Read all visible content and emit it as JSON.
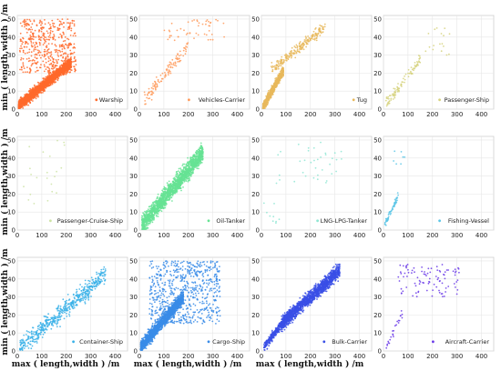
{
  "chart_data": {
    "type": "scatter",
    "layout": "3x4 grid of scatter panels",
    "grid": true,
    "legend_placement": "lower-right",
    "xlabel": "max ( length,width ) /m",
    "ylabel": "min ( length,width ) /m",
    "xlim": [
      0,
      450
    ],
    "ylim": [
      0,
      52
    ],
    "xticks": [
      0,
      100,
      200,
      300,
      400
    ],
    "yticks": [
      0,
      10,
      20,
      30,
      40,
      50
    ],
    "panels": [
      {
        "name": "Warship",
        "color": "#ff6a2b",
        "density": "very dense",
        "approx_points": 2400,
        "clusters": [
          {
            "x_range": [
              5,
              220
            ],
            "y_range": [
              2,
              30
            ],
            "weight": 0.8,
            "trend": "rising"
          },
          {
            "x_range": [
              10,
              240
            ],
            "y_range": [
              20,
              50
            ],
            "weight": 0.2,
            "trend": "none"
          }
        ]
      },
      {
        "name": "Vehicles-Carrier",
        "color": "#ff9a5a",
        "density": "medium",
        "approx_points": 160,
        "clusters": [
          {
            "x_range": [
              20,
              200
            ],
            "y_range": [
              5,
              40
            ],
            "weight": 0.7,
            "trend": "rising"
          },
          {
            "x_range": [
              100,
              350
            ],
            "y_range": [
              38,
              50
            ],
            "weight": 0.3,
            "trend": "none"
          }
        ]
      },
      {
        "name": "Tug",
        "color": "#e8b85c",
        "density": "dense",
        "approx_points": 900,
        "clusters": [
          {
            "x_range": [
              5,
              90
            ],
            "y_range": [
              1,
              25
            ],
            "weight": 0.75,
            "trend": "rising"
          },
          {
            "x_range": [
              40,
              260
            ],
            "y_range": [
              22,
              50
            ],
            "weight": 0.25,
            "trend": "rising"
          }
        ]
      },
      {
        "name": "Passenger-Ship",
        "color": "#d6d27e",
        "density": "sparse",
        "approx_points": 110,
        "clusters": [
          {
            "x_range": [
              10,
              150
            ],
            "y_range": [
              3,
              32
            ],
            "weight": 0.85,
            "trend": "rising"
          },
          {
            "x_range": [
              150,
              270
            ],
            "y_range": [
              30,
              48
            ],
            "weight": 0.15,
            "trend": "none"
          }
        ]
      },
      {
        "name": "Passenger-Cruise-Ship",
        "color": "#cde3a4",
        "density": "very sparse",
        "approx_points": 22,
        "clusters": [
          {
            "x_range": [
              20,
              200
            ],
            "y_range": [
              12,
              50
            ],
            "weight": 1.0,
            "trend": "none"
          }
        ]
      },
      {
        "name": "Oil-Tanker",
        "color": "#66e394",
        "density": "dense",
        "approx_points": 1700,
        "clusters": [
          {
            "x_range": [
              10,
              260
            ],
            "y_range": [
              3,
              50
            ],
            "weight": 1.0,
            "trend": "rising"
          }
        ]
      },
      {
        "name": "LNG-LPG-Tanker",
        "color": "#8fe6d3",
        "density": "very sparse",
        "approx_points": 45,
        "clusters": [
          {
            "x_range": [
              60,
              330
            ],
            "y_range": [
              25,
              50
            ],
            "weight": 0.8,
            "trend": "none"
          },
          {
            "x_range": [
              10,
              80
            ],
            "y_range": [
              3,
              15
            ],
            "weight": 0.2,
            "trend": "none"
          }
        ]
      },
      {
        "name": "Fishing-Vessel",
        "color": "#5cc6e6",
        "density": "sparse",
        "approx_points": 70,
        "clusters": [
          {
            "x_range": [
              5,
              60
            ],
            "y_range": [
              3,
              22
            ],
            "weight": 0.9,
            "trend": "rising"
          },
          {
            "x_range": [
              40,
              90
            ],
            "y_range": [
              35,
              45
            ],
            "weight": 0.1,
            "trend": "none"
          }
        ]
      },
      {
        "name": "Container-Ship",
        "color": "#38b0e8",
        "density": "medium",
        "approx_points": 520,
        "clusters": [
          {
            "x_range": [
              10,
              360
            ],
            "y_range": [
              2,
              50
            ],
            "weight": 1.0,
            "trend": "rising"
          }
        ]
      },
      {
        "name": "Cargo-Ship",
        "color": "#3a8ce8",
        "density": "very dense",
        "approx_points": 2200,
        "clusters": [
          {
            "x_range": [
              5,
              180
            ],
            "y_range": [
              2,
              35
            ],
            "weight": 0.7,
            "trend": "rising"
          },
          {
            "x_range": [
              40,
              330
            ],
            "y_range": [
              15,
              50
            ],
            "weight": 0.3,
            "trend": "none"
          }
        ]
      },
      {
        "name": "Bulk-Carrier",
        "color": "#3a4fe6",
        "density": "dense",
        "approx_points": 1800,
        "clusters": [
          {
            "x_range": [
              80,
              320
            ],
            "y_range": [
              15,
              50
            ],
            "weight": 0.8,
            "trend": "rising"
          },
          {
            "x_range": [
              10,
              120
            ],
            "y_range": [
              2,
              25
            ],
            "weight": 0.2,
            "trend": "rising"
          }
        ]
      },
      {
        "name": "Aircraft-Carrier",
        "color": "#6a3ae8",
        "density": "sparse",
        "approx_points": 120,
        "clusters": [
          {
            "x_range": [
              60,
              310
            ],
            "y_range": [
              30,
              48
            ],
            "weight": 0.8,
            "trend": "none"
          },
          {
            "x_range": [
              10,
              80
            ],
            "y_range": [
              2,
              25
            ],
            "weight": 0.2,
            "trend": "rising"
          }
        ]
      }
    ]
  }
}
